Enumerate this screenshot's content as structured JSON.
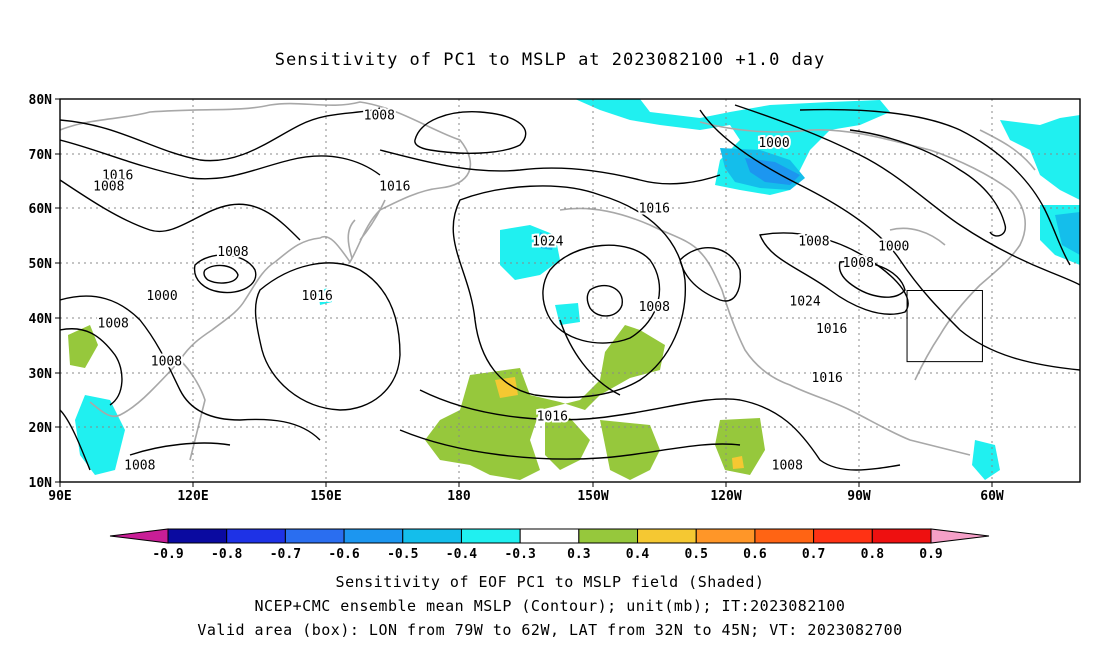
{
  "title": "Sensitivity of PC1 to MSLP at 2023082100 +1.0 day",
  "map": {
    "lat_labels": [
      "80N",
      "70N",
      "60N",
      "50N",
      "40N",
      "30N",
      "20N",
      "10N"
    ],
    "lon_labels": [
      "90E",
      "120E",
      "150E",
      "180",
      "150W",
      "120W",
      "90W",
      "60W"
    ],
    "contour_labels": [
      {
        "text": "1008",
        "lon": 162,
        "lat": 77
      },
      {
        "text": "1016",
        "lon": 103,
        "lat": 66
      },
      {
        "text": "1008",
        "lon": 101,
        "lat": 64
      },
      {
        "text": "1016",
        "lon": 165.5,
        "lat": 64
      },
      {
        "text": "1000",
        "lon": 251,
        "lat": 72
      },
      {
        "text": "1016",
        "lon": 224,
        "lat": 60
      },
      {
        "text": "1024",
        "lon": 200,
        "lat": 54
      },
      {
        "text": "1008",
        "lon": 129,
        "lat": 52
      },
      {
        "text": "1008",
        "lon": 260,
        "lat": 54
      },
      {
        "text": "1000",
        "lon": 278,
        "lat": 53
      },
      {
        "text": "1008",
        "lon": 270,
        "lat": 50
      },
      {
        "text": "1000",
        "lon": 113,
        "lat": 44
      },
      {
        "text": "1016",
        "lon": 148,
        "lat": 44
      },
      {
        "text": "1008",
        "lon": 224,
        "lat": 42
      },
      {
        "text": "1024",
        "lon": 258,
        "lat": 43
      },
      {
        "text": "1016",
        "lon": 264,
        "lat": 38
      },
      {
        "text": "1008",
        "lon": 102,
        "lat": 39
      },
      {
        "text": "1008",
        "lon": 114,
        "lat": 32
      },
      {
        "text": "1016",
        "lon": 263,
        "lat": 29
      },
      {
        "text": "1016",
        "lon": 201,
        "lat": 22
      },
      {
        "text": "1008",
        "lon": 108,
        "lat": 13
      },
      {
        "text": "1008",
        "lon": 254,
        "lat": 13
      }
    ],
    "valid_box": {
      "lon_w": -79,
      "lon_e": -62,
      "lat_s": 32,
      "lat_n": 45
    }
  },
  "colorbar": {
    "labels": [
      "-0.9",
      "-0.8",
      "-0.7",
      "-0.6",
      "-0.5",
      "-0.4",
      "-0.3",
      "0.3",
      "0.4",
      "0.5",
      "0.6",
      "0.7",
      "0.8",
      "0.9"
    ],
    "colors": [
      "#0a0aa0",
      "#1e32e6",
      "#2a6ef0",
      "#1c96f0",
      "#14beeb",
      "#20f0f0",
      "#ffffff",
      "#96c83c",
      "#f5c832",
      "#ff9628",
      "#ff6414",
      "#ff3214",
      "#ee1010"
    ],
    "low_arrow_color": "#c81e96",
    "high_arrow_color": "#f5a0c8"
  },
  "captions": [
    "Sensitivity of EOF PC1 to MSLP field (Shaded)",
    "NCEP+CMC ensemble mean MSLP (Contour); unit(mb); IT:2023082100",
    "Valid area (box): LON from 79W to 62W, LAT from 32N to 45N; VT: 2023082700"
  ]
}
